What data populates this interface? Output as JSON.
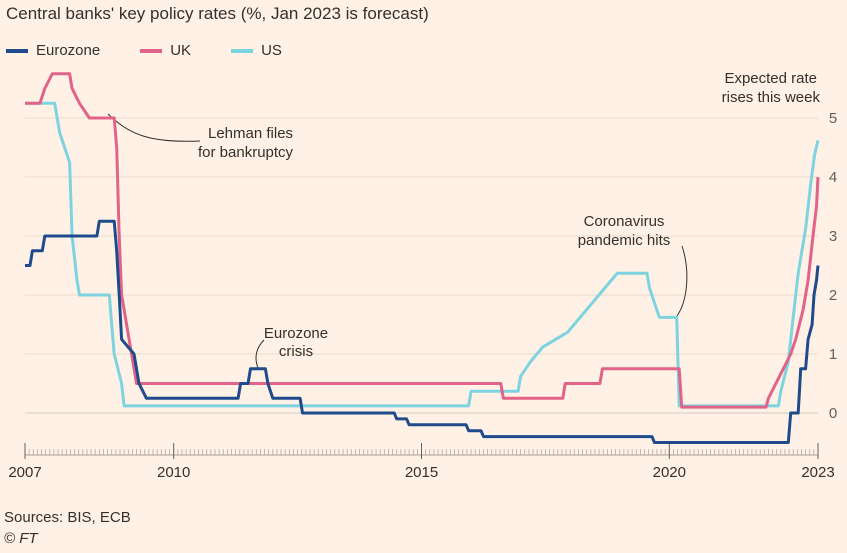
{
  "title": "Central banks' key policy rates (%, Jan 2023 is forecast)",
  "legend": [
    {
      "name": "Eurozone",
      "color": "#1f4a8c"
    },
    {
      "name": "UK",
      "color": "#e1638a"
    },
    {
      "name": "US",
      "color": "#7dd4e0"
    }
  ],
  "source": "Sources: BIS, ECB",
  "copyright": "© FT",
  "annotations": {
    "expected": [
      "Expected rate",
      "rises this week"
    ],
    "lehman": [
      "Lehman files",
      "for bankruptcy"
    ],
    "eurozone_crisis": [
      "Eurozone",
      "crisis"
    ],
    "coronavirus": [
      "Coronavirus",
      "pandemic hits"
    ]
  },
  "chart_data": {
    "type": "line",
    "title": "Central banks' key policy rates (%, Jan 2023 is forecast)",
    "xlabel": "",
    "ylabel": "%",
    "xlim": [
      2007,
      2023
    ],
    "ylim": [
      -0.5,
      5
    ],
    "x_ticks": [
      {
        "value": 2007,
        "label": "2007"
      },
      {
        "value": 2010,
        "label": "2010"
      },
      {
        "value": 2015,
        "label": "2015"
      },
      {
        "value": 2020,
        "label": "2020"
      },
      {
        "value": 2023,
        "label": "2023"
      }
    ],
    "y_ticks": [
      {
        "value": 0,
        "label": "0"
      },
      {
        "value": 1,
        "label": "1"
      },
      {
        "value": 2,
        "label": "2"
      },
      {
        "value": 3,
        "label": "3"
      },
      {
        "value": 4,
        "label": "4"
      },
      {
        "value": 5,
        "label": "5"
      }
    ],
    "series": [
      {
        "name": "Eurozone",
        "color": "#1f4a8c",
        "points": [
          [
            2007.0,
            2.5
          ],
          [
            2007.1,
            2.5
          ],
          [
            2007.15,
            2.75
          ],
          [
            2007.35,
            2.75
          ],
          [
            2007.4,
            3.0
          ],
          [
            2007.6,
            3.0
          ],
          [
            2008.45,
            3.0
          ],
          [
            2008.5,
            3.25
          ],
          [
            2008.8,
            3.25
          ],
          [
            2008.85,
            2.75
          ],
          [
            2008.9,
            2.0
          ],
          [
            2008.95,
            1.25
          ],
          [
            2009.2,
            1.0
          ],
          [
            2009.3,
            0.5
          ],
          [
            2009.45,
            0.25
          ],
          [
            2010.5,
            0.25
          ],
          [
            2011.3,
            0.25
          ],
          [
            2011.35,
            0.5
          ],
          [
            2011.5,
            0.5
          ],
          [
            2011.55,
            0.75
          ],
          [
            2011.85,
            0.75
          ],
          [
            2011.9,
            0.5
          ],
          [
            2012.0,
            0.25
          ],
          [
            2012.55,
            0.25
          ],
          [
            2012.6,
            0.0
          ],
          [
            2014.45,
            0.0
          ],
          [
            2014.5,
            -0.1
          ],
          [
            2014.7,
            -0.1
          ],
          [
            2014.75,
            -0.2
          ],
          [
            2015.9,
            -0.2
          ],
          [
            2015.95,
            -0.3
          ],
          [
            2016.2,
            -0.3
          ],
          [
            2016.25,
            -0.4
          ],
          [
            2019.65,
            -0.4
          ],
          [
            2019.7,
            -0.5
          ],
          [
            2022.4,
            -0.5
          ],
          [
            2022.45,
            0.0
          ],
          [
            2022.6,
            0.0
          ],
          [
            2022.65,
            0.75
          ],
          [
            2022.75,
            0.75
          ],
          [
            2022.8,
            1.25
          ],
          [
            2022.88,
            1.5
          ],
          [
            2022.92,
            2.0
          ],
          [
            2022.97,
            2.25
          ],
          [
            2023.0,
            2.5
          ]
        ]
      },
      {
        "name": "UK",
        "color": "#e1638a",
        "points": [
          [
            2007.0,
            5.25
          ],
          [
            2007.3,
            5.25
          ],
          [
            2007.4,
            5.5
          ],
          [
            2007.55,
            5.75
          ],
          [
            2007.9,
            5.75
          ],
          [
            2007.95,
            5.5
          ],
          [
            2008.1,
            5.25
          ],
          [
            2008.3,
            5.0
          ],
          [
            2008.8,
            5.0
          ],
          [
            2008.85,
            4.5
          ],
          [
            2008.9,
            3.0
          ],
          [
            2008.95,
            2.0
          ],
          [
            2009.05,
            1.5
          ],
          [
            2009.15,
            1.0
          ],
          [
            2009.25,
            0.5
          ],
          [
            2016.6,
            0.5
          ],
          [
            2016.65,
            0.25
          ],
          [
            2017.85,
            0.25
          ],
          [
            2017.9,
            0.5
          ],
          [
            2018.6,
            0.5
          ],
          [
            2018.65,
            0.75
          ],
          [
            2020.2,
            0.75
          ],
          [
            2020.25,
            0.1
          ],
          [
            2021.95,
            0.1
          ],
          [
            2022.0,
            0.25
          ],
          [
            2022.15,
            0.5
          ],
          [
            2022.3,
            0.75
          ],
          [
            2022.45,
            1.0
          ],
          [
            2022.55,
            1.25
          ],
          [
            2022.7,
            1.75
          ],
          [
            2022.8,
            2.25
          ],
          [
            2022.9,
            3.0
          ],
          [
            2022.97,
            3.5
          ],
          [
            2023.0,
            4.0
          ]
        ]
      },
      {
        "name": "US",
        "color": "#7dd4e0",
        "points": [
          [
            2007.0,
            5.25
          ],
          [
            2007.6,
            5.25
          ],
          [
            2007.7,
            4.75
          ],
          [
            2007.8,
            4.5
          ],
          [
            2007.9,
            4.25
          ],
          [
            2007.95,
            3.0
          ],
          [
            2008.05,
            2.25
          ],
          [
            2008.1,
            2.0
          ],
          [
            2008.3,
            2.0
          ],
          [
            2008.7,
            2.0
          ],
          [
            2008.75,
            1.5
          ],
          [
            2008.8,
            1.0
          ],
          [
            2008.95,
            0.5
          ],
          [
            2009.0,
            0.12
          ],
          [
            2015.95,
            0.12
          ],
          [
            2016.0,
            0.37
          ],
          [
            2016.95,
            0.37
          ],
          [
            2017.0,
            0.62
          ],
          [
            2017.2,
            0.87
          ],
          [
            2017.45,
            1.12
          ],
          [
            2017.95,
            1.37
          ],
          [
            2018.2,
            1.62
          ],
          [
            2018.45,
            1.87
          ],
          [
            2018.7,
            2.12
          ],
          [
            2018.95,
            2.37
          ],
          [
            2019.55,
            2.37
          ],
          [
            2019.6,
            2.12
          ],
          [
            2019.7,
            1.87
          ],
          [
            2019.8,
            1.62
          ],
          [
            2020.15,
            1.62
          ],
          [
            2020.2,
            0.12
          ],
          [
            2022.2,
            0.12
          ],
          [
            2022.25,
            0.37
          ],
          [
            2022.4,
            0.87
          ],
          [
            2022.5,
            1.62
          ],
          [
            2022.6,
            2.37
          ],
          [
            2022.75,
            3.12
          ],
          [
            2022.85,
            3.87
          ],
          [
            2022.93,
            4.37
          ],
          [
            2023.0,
            4.62
          ]
        ]
      }
    ]
  }
}
